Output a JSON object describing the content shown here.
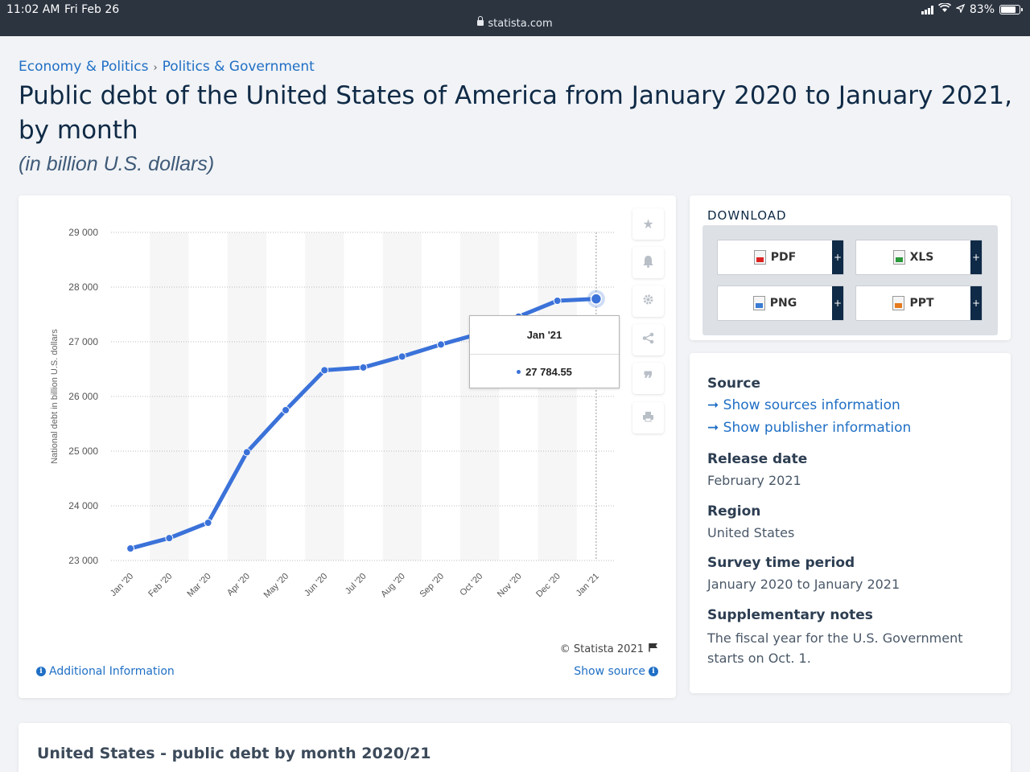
{
  "status_bar": {
    "time": "11:02 AM",
    "date": "Fri Feb 26",
    "url": "statista.com",
    "battery": "83%"
  },
  "breadcrumb": [
    "Economy & Politics",
    "Politics & Government"
  ],
  "page": {
    "title": "Public debt of the United States of America from January 2020 to January 2021, by month",
    "subtitle": "(in billion U.S. dollars)"
  },
  "chart_data": {
    "type": "line",
    "title": "",
    "xlabel": "",
    "ylabel": "National debt in billion U.S. dollars",
    "categories": [
      "Jan '20",
      "Feb '20",
      "Mar '20",
      "Apr '20",
      "May '20",
      "Jun '20",
      "Jul '20",
      "Aug '20",
      "Sep '20",
      "Oct '20",
      "Nov '20",
      "Dec '20",
      "Jan '21"
    ],
    "series": [
      {
        "name": "Public debt",
        "values": [
          23220,
          23410,
          23690,
          24980,
          25750,
          26480,
          26530,
          26730,
          26950,
          27150,
          27460,
          27750,
          27784.55
        ]
      }
    ],
    "ylim": [
      23000,
      29000
    ],
    "yticks": [
      23000,
      24000,
      25000,
      26000,
      27000,
      28000,
      29000
    ],
    "ytick_labels": [
      "23 000",
      "24 000",
      "25 000",
      "26 000",
      "27 000",
      "28 000",
      "29 000"
    ],
    "grid": true,
    "color": "#3b72d9",
    "tooltip": {
      "label": "Jan '21",
      "value": "27 784.55"
    }
  },
  "chart_footer": {
    "copyright": "© Statista 2021",
    "additional_info": "Additional Information",
    "show_source": "Show source"
  },
  "download": {
    "title": "DOWNLOAD",
    "buttons": [
      {
        "label": "PDF",
        "icon": "pdf-file-icon"
      },
      {
        "label": "XLS",
        "icon": "xls-file-icon"
      },
      {
        "label": "PNG",
        "icon": "png-file-icon"
      },
      {
        "label": "PPT",
        "icon": "ppt-file-icon"
      }
    ],
    "plus": "+"
  },
  "info": {
    "source_label": "Source",
    "show_sources": "Show sources information",
    "show_publisher": "Show publisher information",
    "release_label": "Release date",
    "release_value": "February 2021",
    "region_label": "Region",
    "region_value": "United States",
    "survey_label": "Survey time period",
    "survey_value": "January 2020 to January 2021",
    "notes_label": "Supplementary notes",
    "notes_value": "The fiscal year for the U.S. Government starts on Oct. 1."
  },
  "bottom": {
    "title": "United States - public debt by month 2020/21"
  }
}
